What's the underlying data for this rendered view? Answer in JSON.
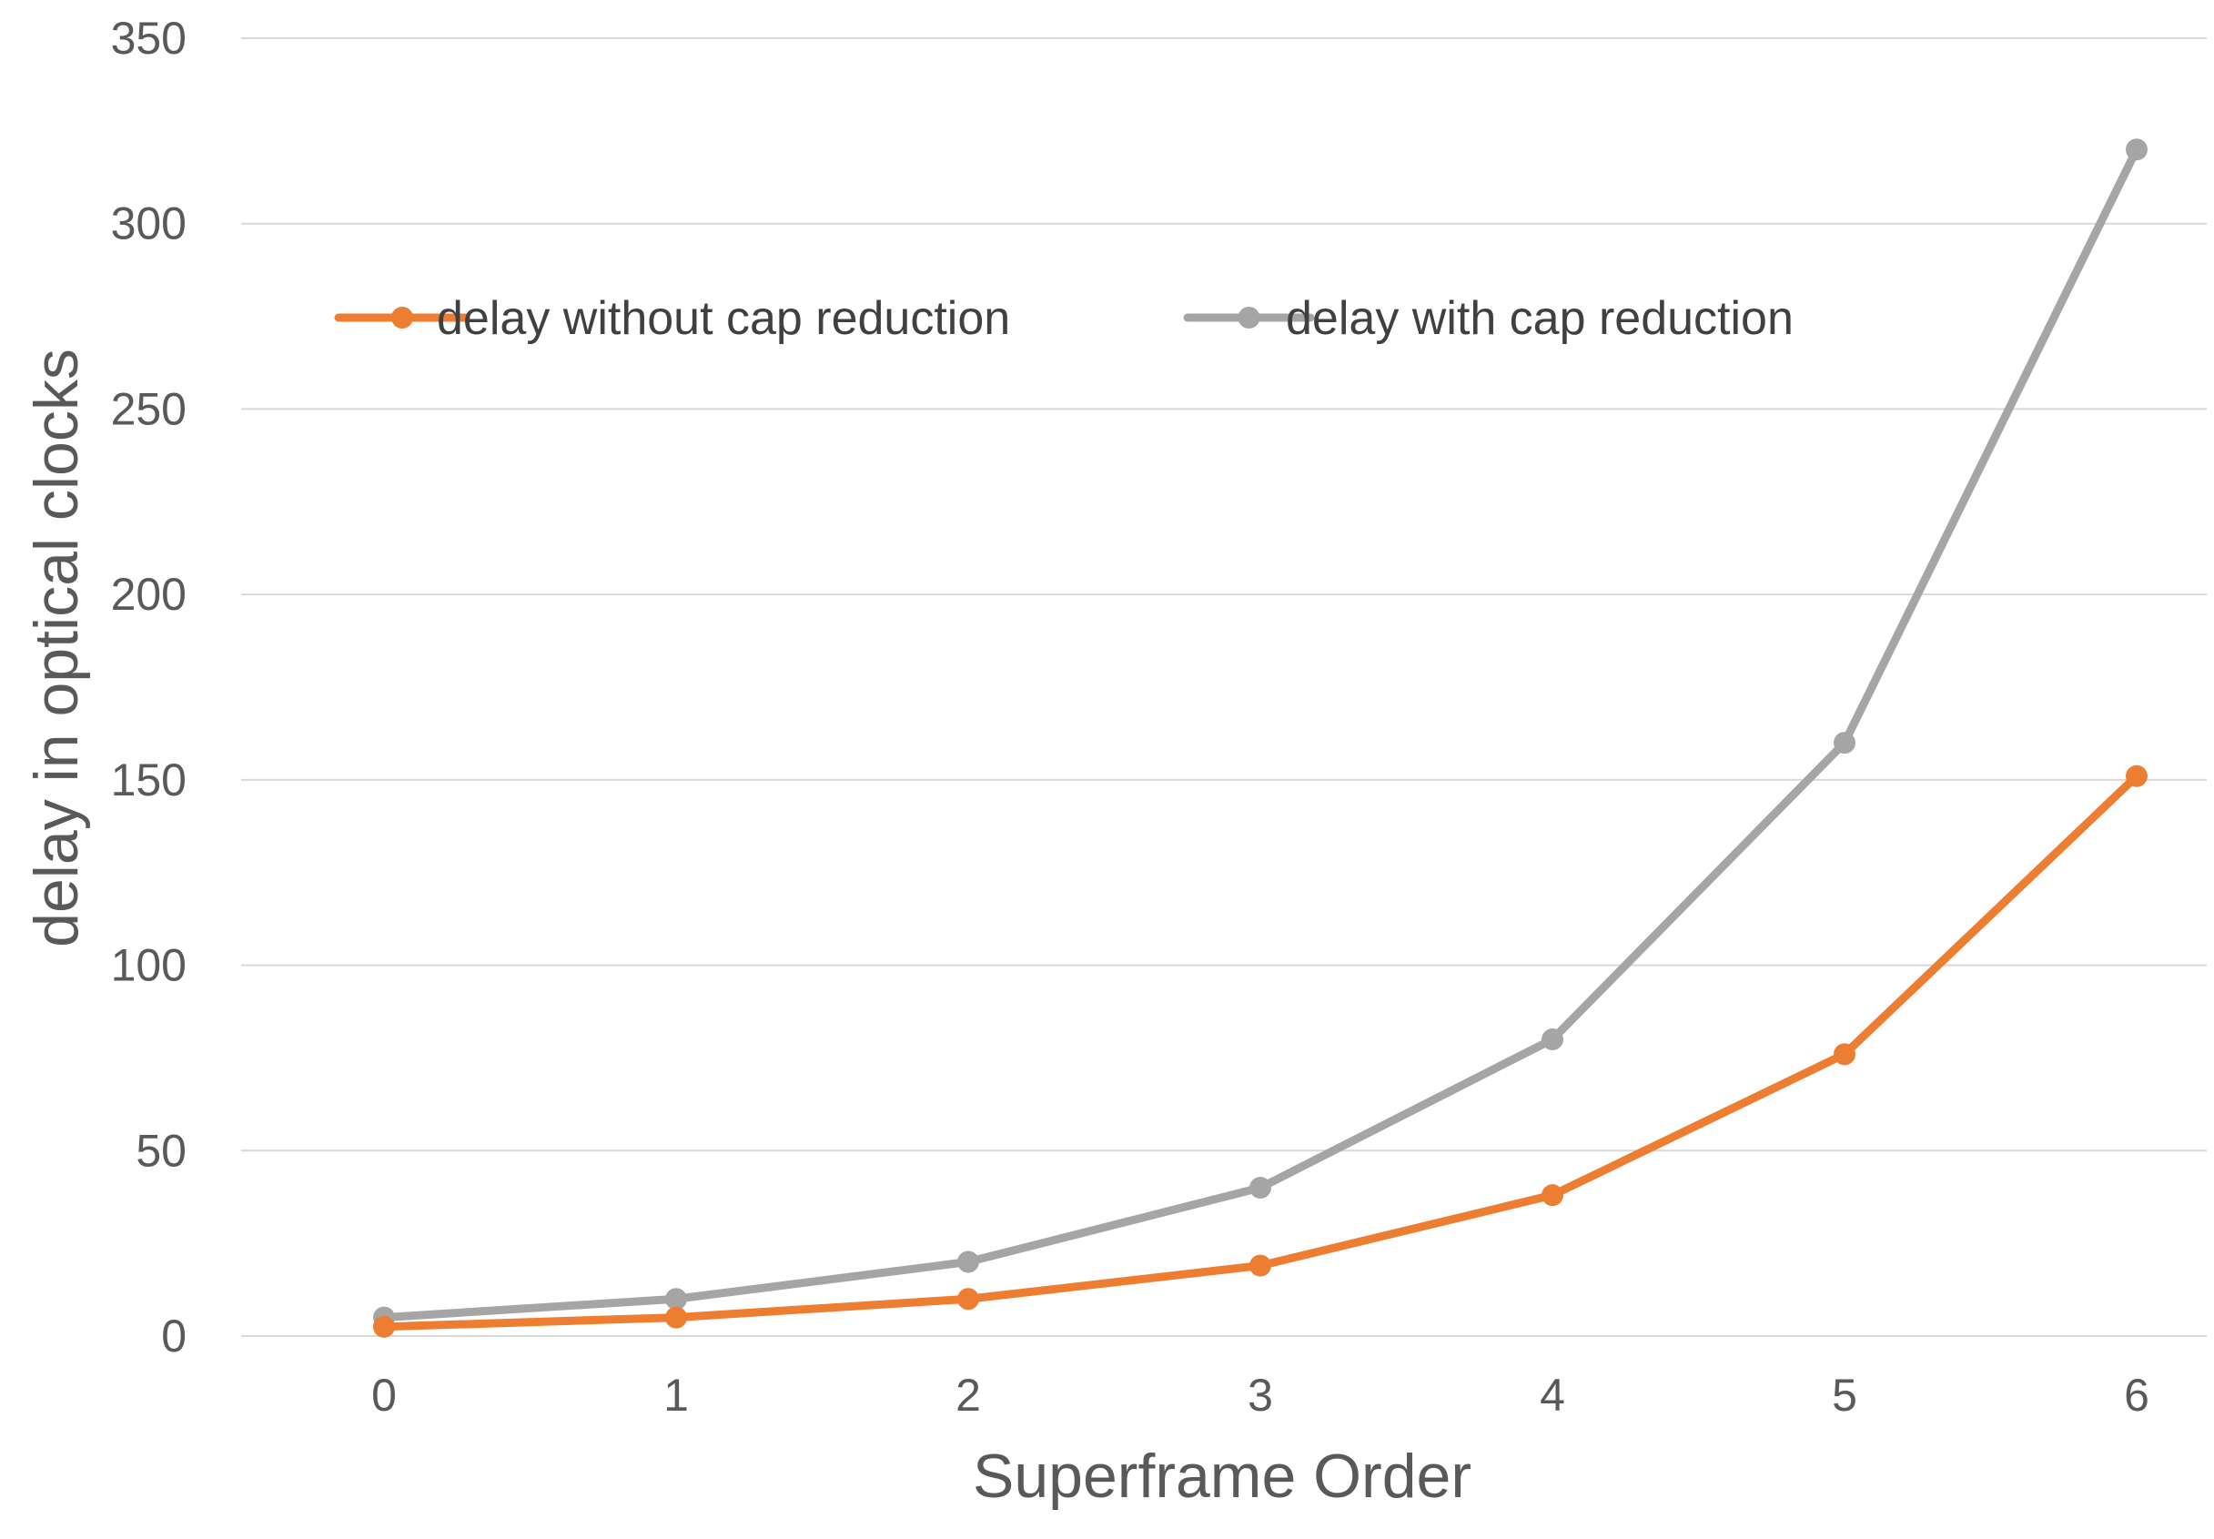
{
  "chart_data": {
    "type": "line",
    "title": "",
    "xlabel": "Superframe Order",
    "ylabel": "delay in optical clocks",
    "categories": [
      "0",
      "1",
      "2",
      "3",
      "4",
      "5",
      "6"
    ],
    "ylim": [
      0,
      350
    ],
    "yticks": [
      "0",
      "50",
      "100",
      "150",
      "200",
      "250",
      "300",
      "350"
    ],
    "grid": true,
    "legend_position": "top-left inside plot",
    "series": [
      {
        "name": "delay without cap reduction",
        "color": "#ED7D31",
        "values": [
          2.5,
          5,
          10,
          19,
          38,
          76,
          151
        ]
      },
      {
        "name": "delay with cap reduction",
        "color": "#A5A5A5",
        "values": [
          5,
          10,
          20,
          40,
          80,
          160,
          320
        ]
      }
    ]
  }
}
